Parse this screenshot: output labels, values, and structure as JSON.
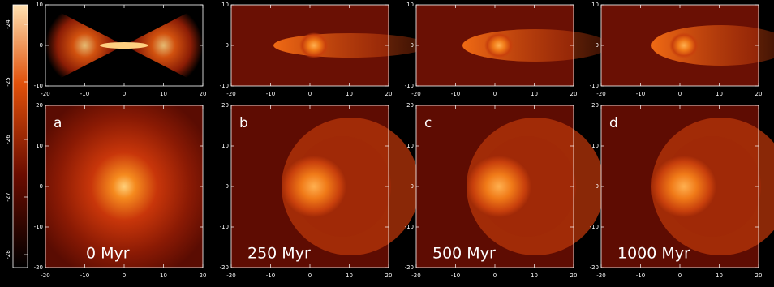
{
  "colorbar": {
    "ticks": [
      -24,
      -25,
      -26,
      -27,
      -28
    ]
  },
  "top_axes": {
    "xticks": [
      -20,
      -10,
      0,
      10,
      20
    ],
    "yticks": [
      -10,
      0,
      10
    ]
  },
  "bottom_axes": {
    "xticks": [
      -20,
      -10,
      0,
      10,
      20
    ],
    "yticks": [
      -20,
      -10,
      0,
      10,
      20
    ]
  },
  "panels": [
    {
      "letter": "a",
      "time": "0 Myr"
    },
    {
      "letter": "b",
      "time": "250 Myr"
    },
    {
      "letter": "c",
      "time": "500 Myr"
    },
    {
      "letter": "d",
      "time": "1000 Myr"
    }
  ]
}
